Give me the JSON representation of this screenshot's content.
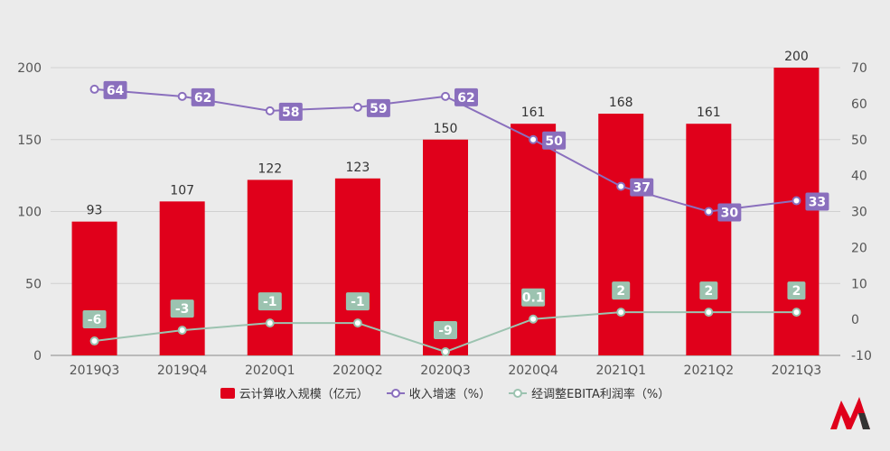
{
  "chart_data": {
    "type": "bar+line",
    "categories": [
      "2019Q3",
      "2019Q4",
      "2020Q1",
      "2020Q2",
      "2020Q3",
      "2020Q4",
      "2021Q1",
      "2021Q2",
      "2021Q3"
    ],
    "series": [
      {
        "name": "云计算收入规模（亿元）",
        "type": "bar",
        "axis": "left",
        "color": "#e0001b",
        "values": [
          93,
          107,
          122,
          123,
          150,
          161,
          168,
          161,
          200
        ],
        "labels": [
          "93",
          "107",
          "122",
          "123",
          "150",
          "161",
          "168",
          "161",
          "200"
        ]
      },
      {
        "name": "收入增速（%）",
        "type": "line",
        "axis": "right",
        "color": "#8a6fbd",
        "values": [
          64,
          62,
          58,
          59,
          62,
          50,
          37,
          30,
          33
        ],
        "labels": [
          "64",
          "62",
          "58",
          "59",
          "62",
          "50",
          "37",
          "30",
          "33"
        ]
      },
      {
        "name": "经调整EBITA利润率（%）",
        "type": "line",
        "axis": "right",
        "color": "#9cc3b0",
        "values": [
          -6,
          -3,
          -1,
          -1,
          -9,
          0.1,
          2,
          2,
          2
        ],
        "labels": [
          "-6",
          "-3",
          "-1",
          "-1",
          "-9",
          "0.1",
          "2",
          "2",
          "2"
        ]
      }
    ],
    "left_axis": {
      "min": 0,
      "max": 200,
      "ticks": [
        "0",
        "50",
        "100",
        "150",
        "200"
      ]
    },
    "right_axis": {
      "min": -10,
      "max": 70,
      "ticks": [
        "-10",
        "0",
        "10",
        "20",
        "30",
        "40",
        "50",
        "60",
        "70"
      ]
    },
    "legend_position": "bottom-center",
    "grid": true
  },
  "colors": {
    "bar": "#e0001b",
    "growth": "#8a6fbd",
    "margin": "#9cc3b0",
    "logo_red": "#e0001b",
    "logo_dark": "#333333"
  },
  "logo_icon": "brand-logo-icon"
}
